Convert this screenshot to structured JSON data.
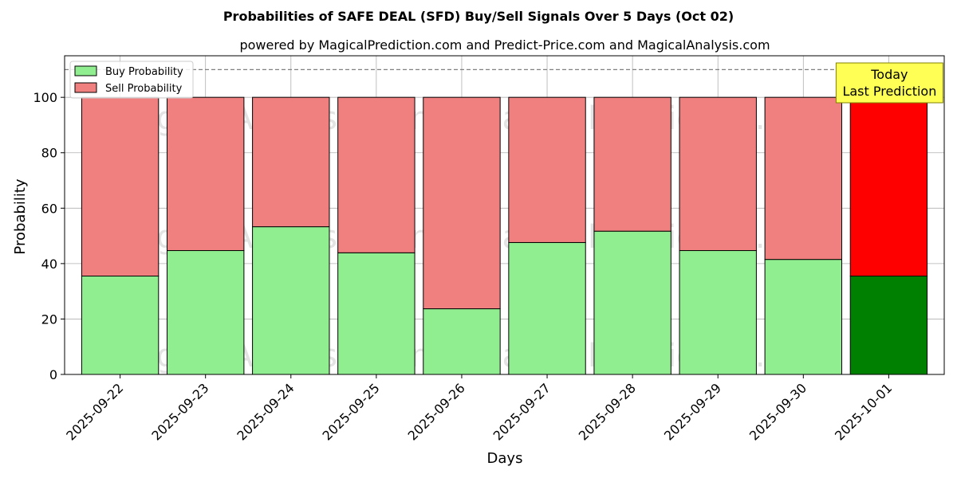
{
  "chart_data": {
    "type": "bar",
    "stacked": true,
    "title": "Probabilities of SAFE DEAL (SFD) Buy/Sell Signals Over 5 Days (Oct 02)",
    "subtitle": "powered by MagicalPrediction.com and Predict-Price.com and MagicalAnalysis.com",
    "xlabel": "Days",
    "ylabel": "Probability",
    "ylim": [
      0,
      115
    ],
    "yticks": [
      0,
      20,
      40,
      60,
      80,
      100
    ],
    "grid": true,
    "legend_position": "top-left",
    "reference_line": {
      "y": 110,
      "style": "dashed",
      "color": "#808080"
    },
    "categories": [
      "2025-09-22",
      "2025-09-23",
      "2025-09-24",
      "2025-09-25",
      "2025-09-26",
      "2025-09-27",
      "2025-09-28",
      "2025-09-29",
      "2025-09-30",
      "2025-10-01"
    ],
    "series": [
      {
        "name": "Buy Probability",
        "color": "#90ee90",
        "highlight_color": "#008000",
        "values": [
          35.5,
          44.7,
          53.3,
          43.9,
          23.7,
          47.6,
          51.7,
          44.7,
          41.5,
          35.5
        ]
      },
      {
        "name": "Sell Probability",
        "color": "#f08080",
        "highlight_color": "#ff0000",
        "values": [
          64.5,
          55.3,
          46.7,
          56.1,
          76.3,
          52.4,
          48.3,
          55.3,
          58.5,
          64.5
        ]
      }
    ],
    "highlight_index": 9,
    "annotation": {
      "lines": [
        "Today",
        "Last Prediction"
      ],
      "background": "#ffff55",
      "border": "#808000"
    },
    "watermarks": [
      "MagicalAnalysis.com",
      "MagicalPrediction.com"
    ]
  }
}
